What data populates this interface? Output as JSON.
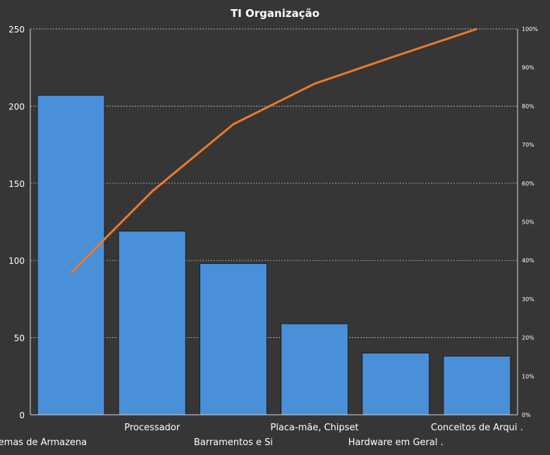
{
  "colors": {
    "background": "#363636",
    "bar": "#4a90d9",
    "line": "#ec7a2c",
    "text": "#ffffff",
    "grid": "#d9d9d9"
  },
  "chart_data": {
    "type": "bar",
    "title": "TI Organização",
    "categories": [
      "Sistemas de Armazena",
      "Processador",
      "Barramentos  e Si",
      "Placa-mãe, Chipset",
      "Hardware  em Geral .",
      "Conceitos de Arqui  ."
    ],
    "series": [
      {
        "type": "bar",
        "axis": "left",
        "values": [
          207,
          119,
          98,
          59,
          40,
          38
        ]
      },
      {
        "type": "line",
        "axis": "right",
        "values": [
          0.368,
          0.579,
          0.753,
          0.858,
          0.93,
          1.0
        ]
      }
    ],
    "y_left": {
      "ylim": [
        0,
        250
      ],
      "ticks": [
        "0",
        "50",
        "100",
        "150",
        "200",
        "250"
      ]
    },
    "y_right": {
      "ylim": [
        0,
        1
      ],
      "ticks": [
        "0%",
        "10%",
        "20%",
        "30%",
        "40%",
        "50%",
        "60%",
        "70%",
        "80%",
        "90%",
        "100%"
      ]
    },
    "grid": true,
    "legend": "none"
  }
}
